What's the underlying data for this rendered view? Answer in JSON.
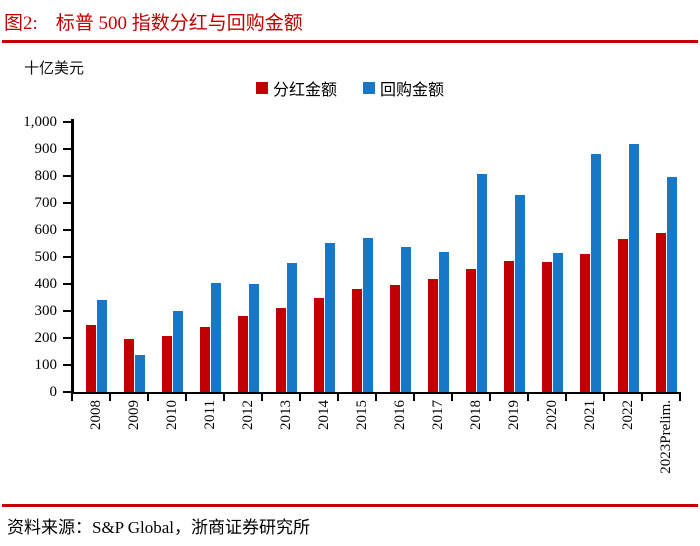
{
  "header": {
    "title_prefix": "图2:",
    "title_text": "标普 500 指数分红与回购金额"
  },
  "colors": {
    "accent_red": "#C00000",
    "bar_red": "#C00000",
    "bar_blue": "#1878C8",
    "axis_black": "#000000"
  },
  "chart": {
    "unit_label": "十亿美元"
  },
  "chart_data": {
    "type": "bar",
    "title": "标普 500 指数分红与回购金额",
    "ylabel": "十亿美元",
    "ylim": [
      0,
      1000
    ],
    "ytick_step": 100,
    "grid": false,
    "legend_position": "top",
    "categories": [
      "2008",
      "2009",
      "2010",
      "2011",
      "2012",
      "2013",
      "2014",
      "2015",
      "2016",
      "2017",
      "2018",
      "2019",
      "2020",
      "2021",
      "2022",
      "2023Prelim."
    ],
    "series": [
      {
        "key": "dividends",
        "name": "分红金额",
        "color": "#C00000",
        "values": [
          250,
          197,
          206,
          241,
          280,
          312,
          350,
          383,
          398,
          420,
          456,
          485,
          480,
          511,
          565,
          588
        ]
      },
      {
        "key": "buybacks",
        "name": "回购金额",
        "color": "#1878C8",
        "values": [
          340,
          137,
          299,
          404,
          399,
          476,
          553,
          572,
          538,
          519,
          806,
          729,
          516,
          880,
          920,
          795
        ]
      }
    ]
  },
  "footer": {
    "source": "资料来源：S&P Global，浙商证券研究所"
  }
}
